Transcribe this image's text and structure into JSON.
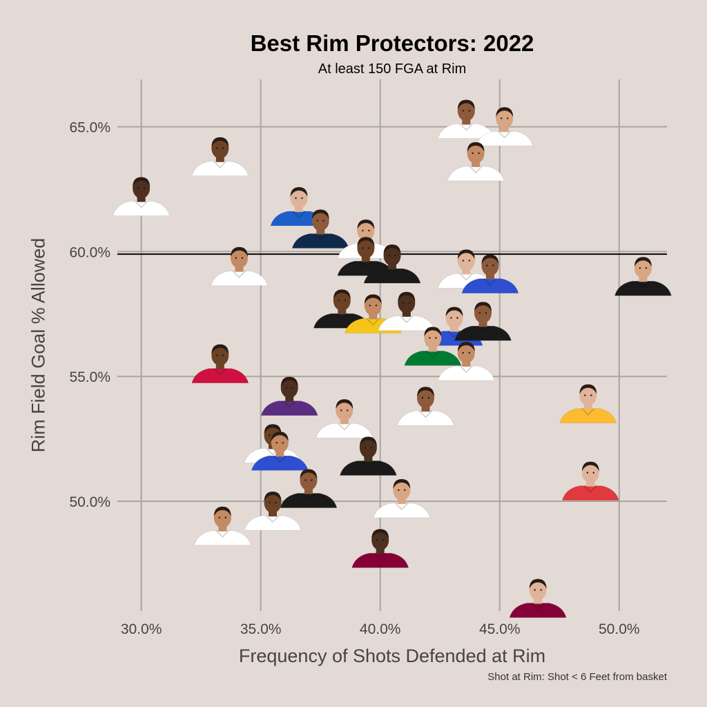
{
  "chart_data": {
    "type": "scatter",
    "title": "Best Rim Protectors: 2022",
    "subtitle": "At least 150 FGA at Rim",
    "xlabel": "Frequency of Shots Defended at Rim",
    "ylabel": "Rim Field Goal % Allowed",
    "caption": "Shot at Rim: Shot < 6 Feet from basket",
    "xlim": [
      0.29,
      0.52
    ],
    "ylim": [
      0.456,
      0.669
    ],
    "x_ticks": [
      0.3,
      0.35,
      0.4,
      0.45,
      0.5
    ],
    "x_tick_labels": [
      "30.0%",
      "35.0%",
      "40.0%",
      "45.0%",
      "50.0%"
    ],
    "y_ticks": [
      0.5,
      0.55,
      0.6,
      0.65
    ],
    "y_tick_labels": [
      "50.0%",
      "55.0%",
      "60.0%",
      "65.0%"
    ],
    "reference_line": {
      "axis": "y",
      "value": 0.599
    },
    "grid": true,
    "legend": "none",
    "marker": "player headshot",
    "points": [
      {
        "x": 0.436,
        "y": 0.652,
        "jersey": "#ffffff"
      },
      {
        "x": 0.452,
        "y": 0.649,
        "jersey": "#ffffff"
      },
      {
        "x": 0.333,
        "y": 0.637,
        "jersey": "#ffffff"
      },
      {
        "x": 0.44,
        "y": 0.635,
        "jersey": "#ffffff"
      },
      {
        "x": 0.3,
        "y": 0.621,
        "jersey": "#ffffff"
      },
      {
        "x": 0.366,
        "y": 0.617,
        "jersey": "#1d5fc9"
      },
      {
        "x": 0.375,
        "y": 0.608,
        "jersey": "#0f2a4a"
      },
      {
        "x": 0.394,
        "y": 0.604,
        "jersey": "#ffffff"
      },
      {
        "x": 0.394,
        "y": 0.597,
        "jersey": "#1a1a1a"
      },
      {
        "x": 0.341,
        "y": 0.593,
        "jersey": "#ffffff"
      },
      {
        "x": 0.405,
        "y": 0.594,
        "jersey": "#1a1a1a"
      },
      {
        "x": 0.436,
        "y": 0.592,
        "jersey": "#ffffff"
      },
      {
        "x": 0.446,
        "y": 0.59,
        "jersey": "#2d4fd0"
      },
      {
        "x": 0.51,
        "y": 0.589,
        "jersey": "#1a1a1a"
      },
      {
        "x": 0.384,
        "y": 0.576,
        "jersey": "#1a1a1a"
      },
      {
        "x": 0.397,
        "y": 0.574,
        "jersey": "#f5c518"
      },
      {
        "x": 0.411,
        "y": 0.575,
        "jersey": "#ffffff"
      },
      {
        "x": 0.431,
        "y": 0.569,
        "jersey": "#2d4fd0"
      },
      {
        "x": 0.443,
        "y": 0.571,
        "jersey": "#1a1a1a"
      },
      {
        "x": 0.422,
        "y": 0.561,
        "jersey": "#007a33"
      },
      {
        "x": 0.333,
        "y": 0.554,
        "jersey": "#ce1141"
      },
      {
        "x": 0.436,
        "y": 0.555,
        "jersey": "#ffffff"
      },
      {
        "x": 0.362,
        "y": 0.541,
        "jersey": "#5a2d81"
      },
      {
        "x": 0.487,
        "y": 0.538,
        "jersey": "#fdbb30"
      },
      {
        "x": 0.419,
        "y": 0.537,
        "jersey": "#ffffff"
      },
      {
        "x": 0.385,
        "y": 0.532,
        "jersey": "#ffffff"
      },
      {
        "x": 0.355,
        "y": 0.522,
        "jersey": "#ffffff"
      },
      {
        "x": 0.358,
        "y": 0.519,
        "jersey": "#2d4fd0"
      },
      {
        "x": 0.395,
        "y": 0.517,
        "jersey": "#1a1a1a"
      },
      {
        "x": 0.488,
        "y": 0.507,
        "jersey": "#e03a3e"
      },
      {
        "x": 0.37,
        "y": 0.504,
        "jersey": "#1a1a1a"
      },
      {
        "x": 0.409,
        "y": 0.5,
        "jersey": "#ffffff"
      },
      {
        "x": 0.355,
        "y": 0.495,
        "jersey": "#ffffff"
      },
      {
        "x": 0.334,
        "y": 0.489,
        "jersey": "#ffffff"
      },
      {
        "x": 0.4,
        "y": 0.48,
        "jersey": "#860038"
      },
      {
        "x": 0.466,
        "y": 0.46,
        "jersey": "#860038"
      }
    ]
  }
}
